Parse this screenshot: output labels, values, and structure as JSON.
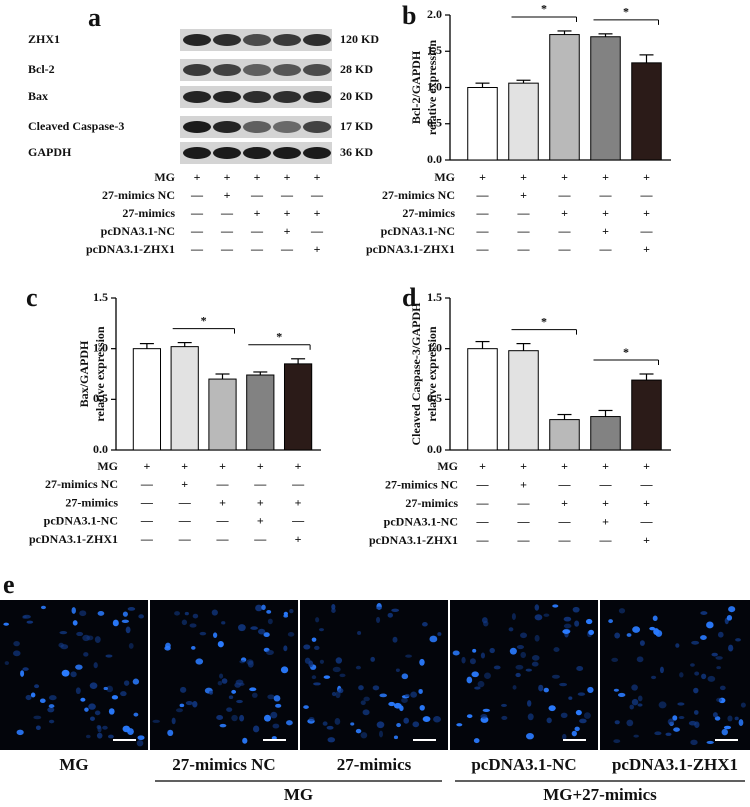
{
  "blot": {
    "label": "a",
    "bands": [
      {
        "name": "ZHX1",
        "size": "120 KD"
      },
      {
        "name": "Bcl-2",
        "size": "28 KD"
      },
      {
        "name": "Bax",
        "size": "20 KD"
      },
      {
        "name": "Cleaved Caspase-3",
        "size": "17 KD"
      },
      {
        "name": "GAPDH",
        "size": "36 KD"
      }
    ],
    "treatments": [
      {
        "label": "MG",
        "signs": [
          "+",
          "+",
          "+",
          "+",
          "+"
        ]
      },
      {
        "label": "27-mimics NC",
        "signs": [
          "—",
          "+",
          "—",
          "—",
          "—"
        ]
      },
      {
        "label": "27-mimics",
        "signs": [
          "—",
          "—",
          "+",
          "+",
          "+"
        ]
      },
      {
        "label": "pcDNA3.1-NC",
        "signs": [
          "—",
          "—",
          "—",
          "+",
          "—"
        ]
      },
      {
        "label": "pcDNA3.1-ZHX1",
        "signs": [
          "—",
          "—",
          "—",
          "—",
          "+"
        ]
      }
    ]
  },
  "chart_data": [
    {
      "type": "bar",
      "label": "b",
      "ylabel": [
        "Bcl-2/GAPDH",
        "relative expression"
      ],
      "values": [
        1.0,
        1.06,
        1.73,
        1.7,
        1.34
      ],
      "errors": [
        0.06,
        0.04,
        0.05,
        0.04,
        0.11
      ],
      "colors": [
        "#ffffff",
        "#e2e2e2",
        "#b9b9b9",
        "#828282",
        "#2b1b18"
      ],
      "ylim": [
        0,
        2.0
      ],
      "yticks": [
        {
          "value": 0,
          "label": "0.0"
        },
        0.5,
        {
          "value": 1.0,
          "label": "1.0"
        },
        1.5,
        {
          "value": 2.0,
          "label": "2.0"
        }
      ],
      "brackets": [
        {
          "label": "*",
          "bars": [
            1,
            2
          ]
        },
        {
          "label": "*",
          "bars": [
            3,
            4
          ]
        }
      ],
      "treatments": [
        {
          "label": "MG",
          "signs": [
            "+",
            "+",
            "+",
            "+",
            "+"
          ]
        },
        {
          "label": "27-mimics NC",
          "signs": [
            "—",
            "+",
            "—",
            "—",
            "—"
          ]
        },
        {
          "label": "27-mimics",
          "signs": [
            "—",
            "—",
            "+",
            "+",
            "+"
          ]
        },
        {
          "label": "pcDNA3.1-NC",
          "signs": [
            "—",
            "—",
            "—",
            "+",
            "—"
          ]
        },
        {
          "label": "pcDNA3.1-ZHX1",
          "signs": [
            "—",
            "—",
            "—",
            "—",
            "+"
          ]
        }
      ]
    },
    {
      "type": "bar",
      "label": "c",
      "ylabel": [
        "Bax/GAPDH",
        "relative expression"
      ],
      "values": [
        1.0,
        1.02,
        0.7,
        0.74,
        0.85
      ],
      "errors": [
        0.05,
        0.04,
        0.05,
        0.03,
        0.05
      ],
      "colors": [
        "#ffffff",
        "#e2e2e2",
        "#b9b9b9",
        "#828282",
        "#2b1b18"
      ],
      "ylim": [
        0,
        1.5
      ],
      "yticks": [
        {
          "value": 0,
          "label": "0.0"
        },
        0.5,
        {
          "value": 1.0,
          "label": "1.0"
        },
        1.5
      ],
      "brackets": [
        {
          "label": "*",
          "bars": [
            1,
            2
          ]
        },
        {
          "label": "*",
          "bars": [
            3,
            4
          ]
        }
      ],
      "treatments": [
        {
          "label": "MG",
          "signs": [
            "+",
            "+",
            "+",
            "+",
            "+"
          ]
        },
        {
          "label": "27-mimics NC",
          "signs": [
            "—",
            "+",
            "—",
            "—",
            "—"
          ]
        },
        {
          "label": "27-mimics",
          "signs": [
            "—",
            "—",
            "+",
            "+",
            "+"
          ]
        },
        {
          "label": "pcDNA3.1-NC",
          "signs": [
            "—",
            "—",
            "—",
            "+",
            "—"
          ]
        },
        {
          "label": "pcDNA3.1-ZHX1",
          "signs": [
            "—",
            "—",
            "—",
            "—",
            "+"
          ]
        }
      ]
    },
    {
      "type": "bar",
      "label": "d",
      "ylabel": [
        "Cleaved Caspase-3/GAPDH",
        "relative expression"
      ],
      "values": [
        1.0,
        0.98,
        0.3,
        0.33,
        0.69
      ],
      "errors": [
        0.07,
        0.07,
        0.05,
        0.06,
        0.06
      ],
      "colors": [
        "#ffffff",
        "#e2e2e2",
        "#b9b9b9",
        "#828282",
        "#2b1b18"
      ],
      "ylim": [
        0,
        1.5
      ],
      "yticks": [
        {
          "value": 0,
          "label": "0.0"
        },
        0.5,
        {
          "value": 1.0,
          "label": "1.0"
        },
        1.5
      ],
      "brackets": [
        {
          "label": "*",
          "bars": [
            1,
            2
          ]
        },
        {
          "label": "*",
          "bars": [
            3,
            4
          ]
        }
      ],
      "treatments": [
        {
          "label": "MG",
          "signs": [
            "+",
            "+",
            "+",
            "+",
            "+"
          ]
        },
        {
          "label": "27-mimics NC",
          "signs": [
            "—",
            "+",
            "—",
            "—",
            "—"
          ]
        },
        {
          "label": "27-mimics",
          "signs": [
            "—",
            "—",
            "+",
            "+",
            "+"
          ]
        },
        {
          "label": "pcDNA3.1-NC",
          "signs": [
            "—",
            "—",
            "—",
            "+",
            "—"
          ]
        },
        {
          "label": "pcDNA3.1-ZHX1",
          "signs": [
            "—",
            "—",
            "—",
            "—",
            "+"
          ]
        }
      ]
    }
  ],
  "images": {
    "label": "e",
    "panels": [
      "MG",
      "27-mimics NC",
      "27-mimics",
      "pcDNA3.1-NC",
      "pcDNA3.1-ZHX1"
    ],
    "groups": [
      "MG",
      "MG+27-mimics"
    ]
  }
}
